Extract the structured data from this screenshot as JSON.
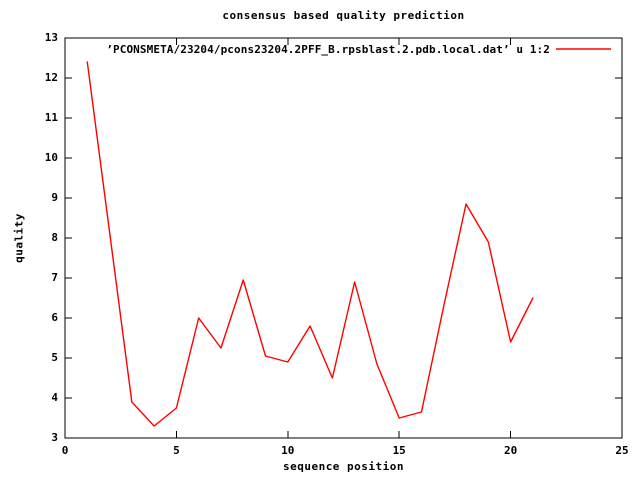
{
  "title": "consensus based quality prediction",
  "legend": {
    "label": "’PCONSMETA/23204/pcons23204.2PFF_B.rpsblast.2.pdb.local.dat’ u 1:2",
    "position": "top-right-inside"
  },
  "axes": {
    "x": {
      "label": "sequence position",
      "min": 0,
      "max": 25,
      "ticks": [
        0,
        5,
        10,
        15,
        20,
        25
      ]
    },
    "y": {
      "label": "quality",
      "min": 3,
      "max": 13,
      "ticks": [
        3,
        4,
        5,
        6,
        7,
        8,
        9,
        10,
        11,
        12,
        13
      ]
    }
  },
  "colors": {
    "background": "#ffffff",
    "foreground": "#000000",
    "series": "#ff0000"
  },
  "chart_data": {
    "type": "line",
    "title": "consensus based quality prediction",
    "xlabel": "sequence position",
    "ylabel": "quality",
    "xlim": [
      0,
      25
    ],
    "ylim": [
      3,
      13
    ],
    "grid": false,
    "legend_position": "top-right-inside",
    "series": [
      {
        "name": "’PCONSMETA/23204/pcons23204.2PFF_B.rpsblast.2.pdb.local.dat’ u 1:2",
        "color": "#ff0000",
        "x": [
          1,
          2,
          3,
          4,
          5,
          6,
          7,
          8,
          9,
          10,
          11,
          12,
          13,
          14,
          15,
          16,
          17,
          18,
          19,
          20,
          21
        ],
        "y": [
          12.4,
          8.15,
          3.9,
          3.3,
          3.75,
          6.0,
          5.25,
          6.95,
          5.05,
          4.9,
          5.8,
          4.5,
          6.9,
          4.85,
          3.5,
          3.65,
          6.3,
          8.85,
          7.9,
          5.4,
          6.5
        ]
      }
    ]
  }
}
